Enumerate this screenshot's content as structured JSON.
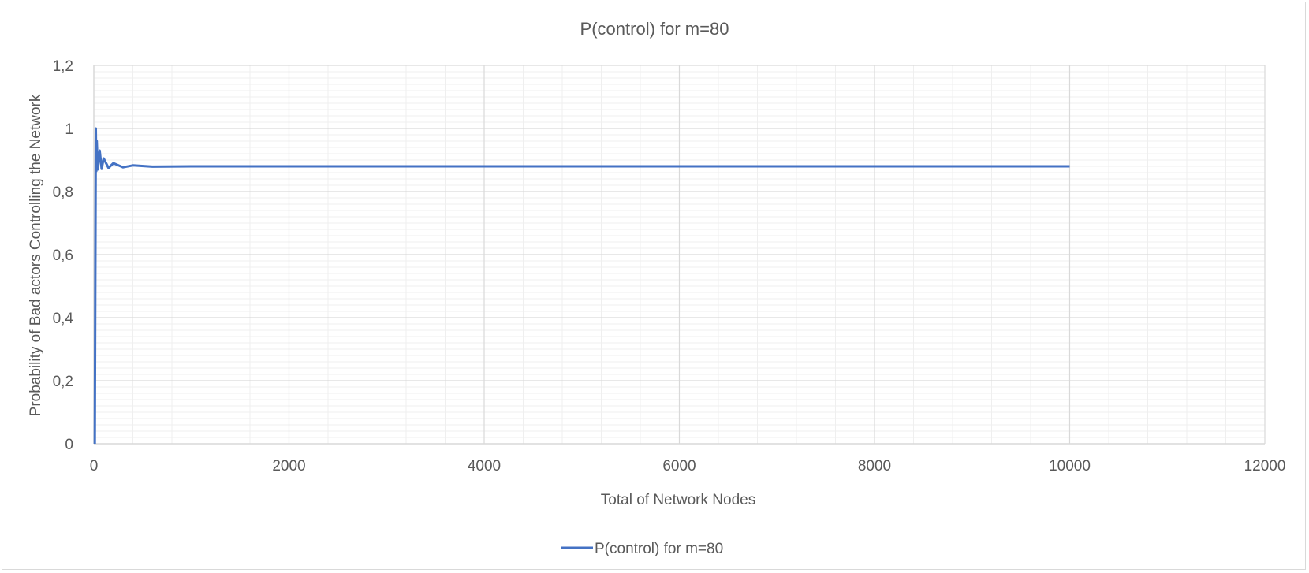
{
  "chart_data": {
    "type": "line",
    "title": "P(control) for m=80",
    "xlabel": "Total of Network Nodes",
    "ylabel": "Probability of Bad actors Controlling the Network",
    "xlim": [
      0,
      12000
    ],
    "ylim": [
      0,
      1.2
    ],
    "x_ticks": [
      "0",
      "2000",
      "4000",
      "6000",
      "8000",
      "10000",
      "12000"
    ],
    "y_ticks": [
      "0",
      "0,2",
      "0,4",
      "0,6",
      "0,8",
      "1",
      "1,2"
    ],
    "x_tick_values": [
      0,
      2000,
      4000,
      6000,
      8000,
      10000,
      12000
    ],
    "y_tick_values": [
      0,
      0.2,
      0.4,
      0.6,
      0.8,
      1.0,
      1.2
    ],
    "grid": true,
    "legend_position": "bottom",
    "series": [
      {
        "name": "P(control) for m=80",
        "color": "#4472c4",
        "x": [
          10,
          20,
          25,
          30,
          40,
          60,
          80,
          100,
          150,
          200,
          300,
          400,
          600,
          1000,
          2000,
          4000,
          6000,
          8000,
          10000
        ],
        "y": [
          0.0,
          1.0,
          0.865,
          0.96,
          0.87,
          0.93,
          0.872,
          0.905,
          0.875,
          0.89,
          0.877,
          0.883,
          0.879,
          0.88,
          0.88,
          0.88,
          0.88,
          0.88,
          0.88
        ]
      }
    ]
  }
}
